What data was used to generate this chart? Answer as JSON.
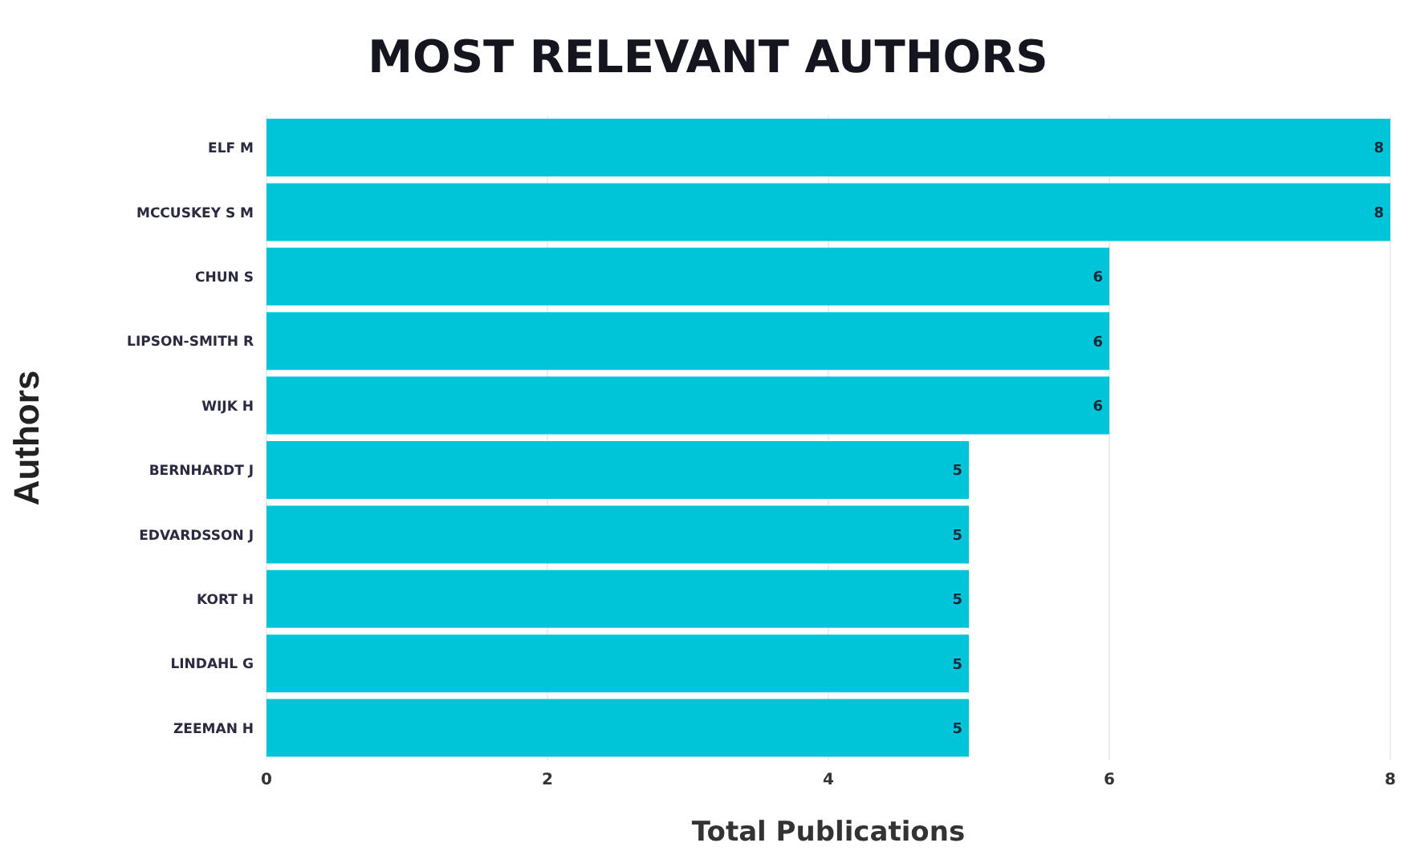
{
  "chart_data": {
    "type": "bar",
    "orientation": "horizontal",
    "title": "MOST RELEVANT AUTHORS",
    "xlabel": "Total Publications",
    "ylabel": "Authors",
    "categories": [
      "ELF M",
      "MCCUSKEY S M",
      "CHUN S",
      "LIPSON-SMITH R",
      "WIJK H",
      "BERNHARDT J",
      "EDVARDSSON J",
      "KORT H",
      "LINDAHL G",
      "ZEEMAN H"
    ],
    "values": [
      8,
      8,
      6,
      6,
      6,
      5,
      5,
      5,
      5,
      5
    ],
    "color": "#00c4d8",
    "xlim": [
      0,
      8
    ],
    "xticks": [
      0,
      2,
      4,
      6,
      8
    ],
    "grid": "x",
    "data_labels": true
  }
}
